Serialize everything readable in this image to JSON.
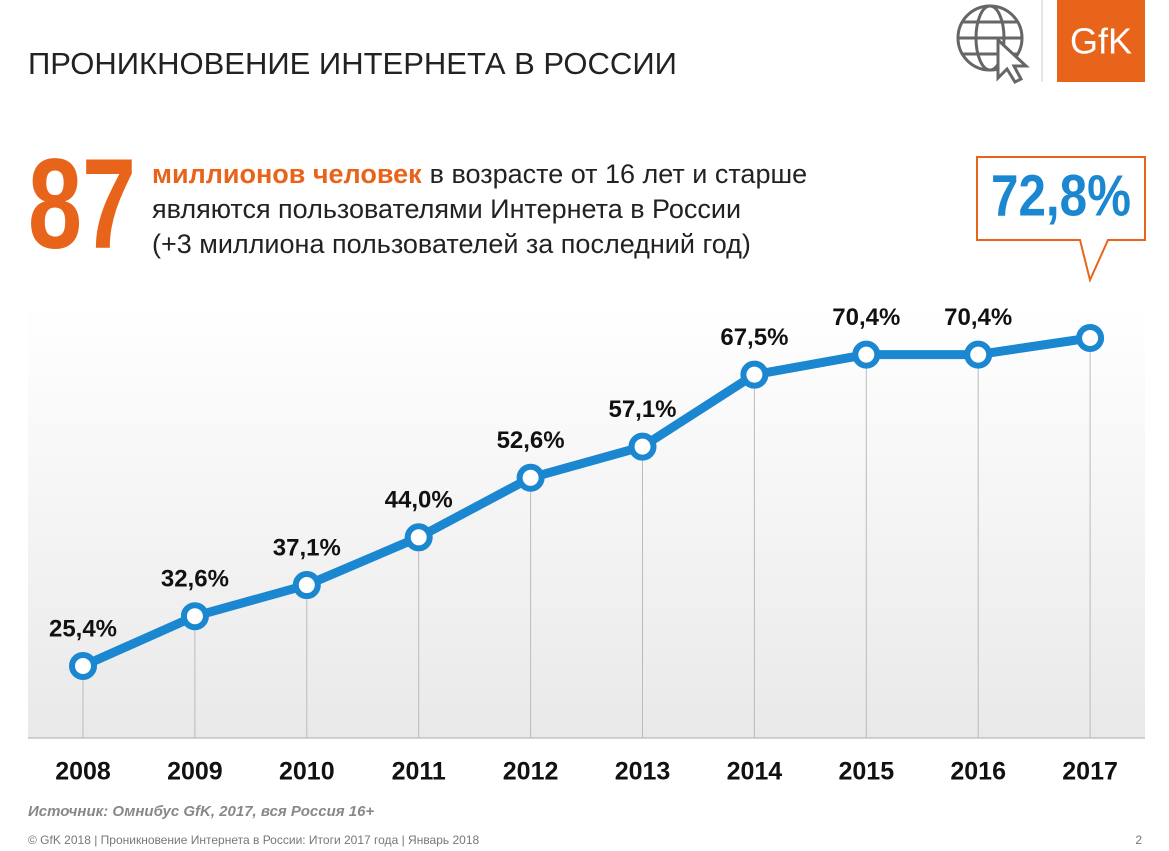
{
  "header": {
    "title": "ПРОНИКНОВЕНИЕ ИНТЕРНЕТА В РОССИИ",
    "logo": "GfK"
  },
  "headline": {
    "number": "87",
    "highlight": "миллионов человек",
    "line1": "в возрасте от 16 лет и старше",
    "line2": "являются пользователями Интернета в России",
    "line3": "(+3 миллиона пользователей за последний год)"
  },
  "chart_data": {
    "type": "line",
    "categories": [
      "2008",
      "2009",
      "2010",
      "2011",
      "2012",
      "2013",
      "2014",
      "2015",
      "2016",
      "2017"
    ],
    "series": [
      {
        "color": "#1b87d0",
        "values": [
          25.4,
          32.6,
          37.1,
          44.0,
          52.6,
          57.1,
          67.5,
          70.4,
          70.4,
          72.8
        ],
        "value_labels": [
          "25,4%",
          "32,6%",
          "37,1%",
          "44,0%",
          "52,6%",
          "57,1%",
          "67,5%",
          "70,4%",
          "70,4%",
          "72,8%"
        ]
      }
    ],
    "ylim": [
      15,
      78
    ],
    "source": "Источник: Омнибус GfK, 2017, вся Россия 16+"
  },
  "footer": {
    "text": "© GfK 2018 | Проникновение Интернета в России: Итоги 2017 года | Январь 2018",
    "page": "2"
  }
}
